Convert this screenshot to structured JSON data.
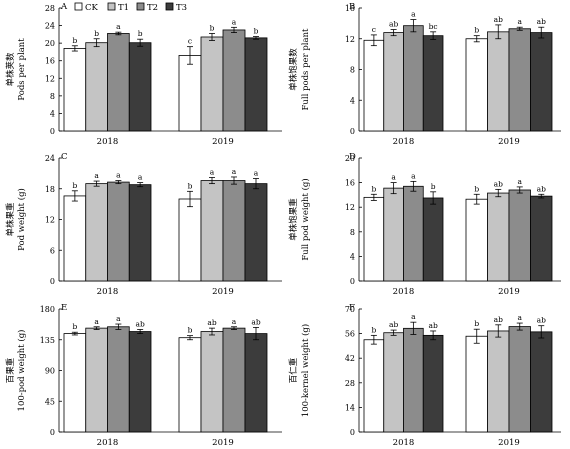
{
  "chart_data": [
    {
      "panel": "A",
      "type": "bar",
      "ylabel_cn": "单株荚数",
      "ylabel": "Pods per plant",
      "ylim": [
        0,
        28
      ],
      "ticks": [
        0,
        4,
        8,
        12,
        16,
        20,
        24,
        28
      ],
      "groups": [
        "2018",
        "2019"
      ],
      "series": [
        {
          "name": "CK",
          "values": [
            18.8,
            17.2
          ],
          "err": [
            0.6,
            2.0
          ],
          "letters": [
            "b",
            "c"
          ]
        },
        {
          "name": "T1",
          "values": [
            20.1,
            21.4
          ],
          "err": [
            0.9,
            0.8
          ],
          "letters": [
            "b",
            "b"
          ]
        },
        {
          "name": "T2",
          "values": [
            22.2,
            23.0
          ],
          "err": [
            0.3,
            0.6
          ],
          "letters": [
            "a",
            "a"
          ]
        },
        {
          "name": "T3",
          "values": [
            20.1,
            21.2
          ],
          "err": [
            0.8,
            0.3
          ],
          "letters": [
            "b",
            "b"
          ]
        }
      ]
    },
    {
      "panel": "B",
      "type": "bar",
      "ylabel_cn": "单株饱果数",
      "ylabel": "Full pods per plant",
      "ylim": [
        0,
        16
      ],
      "ticks": [
        0,
        4,
        8,
        12,
        16
      ],
      "groups": [
        "2018",
        "2019"
      ],
      "series": [
        {
          "name": "CK",
          "values": [
            11.8,
            12.0
          ],
          "err": [
            0.7,
            0.4
          ],
          "letters": [
            "c",
            "b"
          ]
        },
        {
          "name": "T1",
          "values": [
            12.8,
            12.9
          ],
          "err": [
            0.4,
            0.9
          ],
          "letters": [
            "ab",
            "ab"
          ]
        },
        {
          "name": "T2",
          "values": [
            13.7,
            13.3
          ],
          "err": [
            0.8,
            0.2
          ],
          "letters": [
            "a",
            "a"
          ]
        },
        {
          "name": "T3",
          "values": [
            12.4,
            12.8
          ],
          "err": [
            0.5,
            0.7
          ],
          "letters": [
            "bc",
            "ab"
          ]
        }
      ]
    },
    {
      "panel": "C",
      "type": "bar",
      "ylabel_cn": "单株果重",
      "ylabel": "Pod weight (g)",
      "ylim": [
        0,
        24
      ],
      "ticks": [
        0,
        6,
        12,
        18,
        24
      ],
      "groups": [
        "2018",
        "2019"
      ],
      "series": [
        {
          "name": "CK",
          "values": [
            16.6,
            16.0
          ],
          "err": [
            1.0,
            1.5
          ],
          "letters": [
            "b",
            "b"
          ]
        },
        {
          "name": "T1",
          "values": [
            19.0,
            19.6
          ],
          "err": [
            0.5,
            0.6
          ],
          "letters": [
            "a",
            "a"
          ]
        },
        {
          "name": "T2",
          "values": [
            19.3,
            19.6
          ],
          "err": [
            0.3,
            0.7
          ],
          "letters": [
            "a",
            "a"
          ]
        },
        {
          "name": "T3",
          "values": [
            18.8,
            19.0
          ],
          "err": [
            0.4,
            1.0
          ],
          "letters": [
            "a",
            "a"
          ]
        }
      ]
    },
    {
      "panel": "D",
      "type": "bar",
      "ylabel_cn": "单株饱果重",
      "ylabel": "Full pod weight (g)",
      "ylim": [
        0,
        20
      ],
      "ticks": [
        0,
        4,
        8,
        12,
        16,
        20
      ],
      "groups": [
        "2018",
        "2019"
      ],
      "series": [
        {
          "name": "CK",
          "values": [
            13.6,
            13.3
          ],
          "err": [
            0.5,
            0.8
          ],
          "letters": [
            "b",
            "b"
          ]
        },
        {
          "name": "T1",
          "values": [
            15.1,
            14.3
          ],
          "err": [
            0.9,
            0.6
          ],
          "letters": [
            "a",
            "ab"
          ]
        },
        {
          "name": "T2",
          "values": [
            15.4,
            14.8
          ],
          "err": [
            0.8,
            0.5
          ],
          "letters": [
            "a",
            "a"
          ]
        },
        {
          "name": "T3",
          "values": [
            13.5,
            13.8
          ],
          "err": [
            1.0,
            0.3
          ],
          "letters": [
            "b",
            "ab"
          ]
        }
      ]
    },
    {
      "panel": "E",
      "type": "bar",
      "ylabel_cn": "百果重",
      "ylabel": "100-pod weight (g)",
      "ylim": [
        0,
        180
      ],
      "ticks": [
        0,
        45,
        90,
        135,
        180
      ],
      "groups": [
        "2018",
        "2019"
      ],
      "series": [
        {
          "name": "CK",
          "values": [
            144,
            138
          ],
          "err": [
            2,
            3
          ],
          "letters": [
            "b",
            "b"
          ]
        },
        {
          "name": "T1",
          "values": [
            152,
            147
          ],
          "err": [
            2,
            5
          ],
          "letters": [
            "a",
            "ab"
          ]
        },
        {
          "name": "T2",
          "values": [
            154,
            152
          ],
          "err": [
            4,
            2
          ],
          "letters": [
            "a",
            "a"
          ]
        },
        {
          "name": "T3",
          "values": [
            147,
            144
          ],
          "err": [
            3,
            9
          ],
          "letters": [
            "ab",
            "ab"
          ]
        }
      ]
    },
    {
      "panel": "F",
      "type": "bar",
      "ylabel_cn": "百仁重",
      "ylabel": "100-kernel weight (g)",
      "ylim": [
        0,
        70
      ],
      "ticks": [
        0,
        14,
        28,
        42,
        56,
        70
      ],
      "groups": [
        "2018",
        "2019"
      ],
      "series": [
        {
          "name": "CK",
          "values": [
            52.5,
            54.5
          ],
          "err": [
            2.5,
            4.0
          ],
          "letters": [
            "b",
            "b"
          ]
        },
        {
          "name": "T1",
          "values": [
            56.5,
            57.5
          ],
          "err": [
            1.5,
            3.5
          ],
          "letters": [
            "ab",
            "ab"
          ]
        },
        {
          "name": "T2",
          "values": [
            59.0,
            60.0
          ],
          "err": [
            3.5,
            2.0
          ],
          "letters": [
            "a",
            "a"
          ]
        },
        {
          "name": "T3",
          "values": [
            55.0,
            57.0
          ],
          "err": [
            2.5,
            3.5
          ],
          "letters": [
            "ab",
            "ab"
          ]
        }
      ]
    }
  ],
  "legend": {
    "items": [
      {
        "label": "CK",
        "color": "#ffffff"
      },
      {
        "label": "T1",
        "color": "#c4c4c4"
      },
      {
        "label": "T2",
        "color": "#8c8c8c"
      },
      {
        "label": "T3",
        "color": "#3c3c3c"
      }
    ]
  },
  "colors": {
    "CK": "#ffffff",
    "T1": "#c4c4c4",
    "T2": "#8c8c8c",
    "T3": "#3c3c3c",
    "axis": "#000000"
  }
}
